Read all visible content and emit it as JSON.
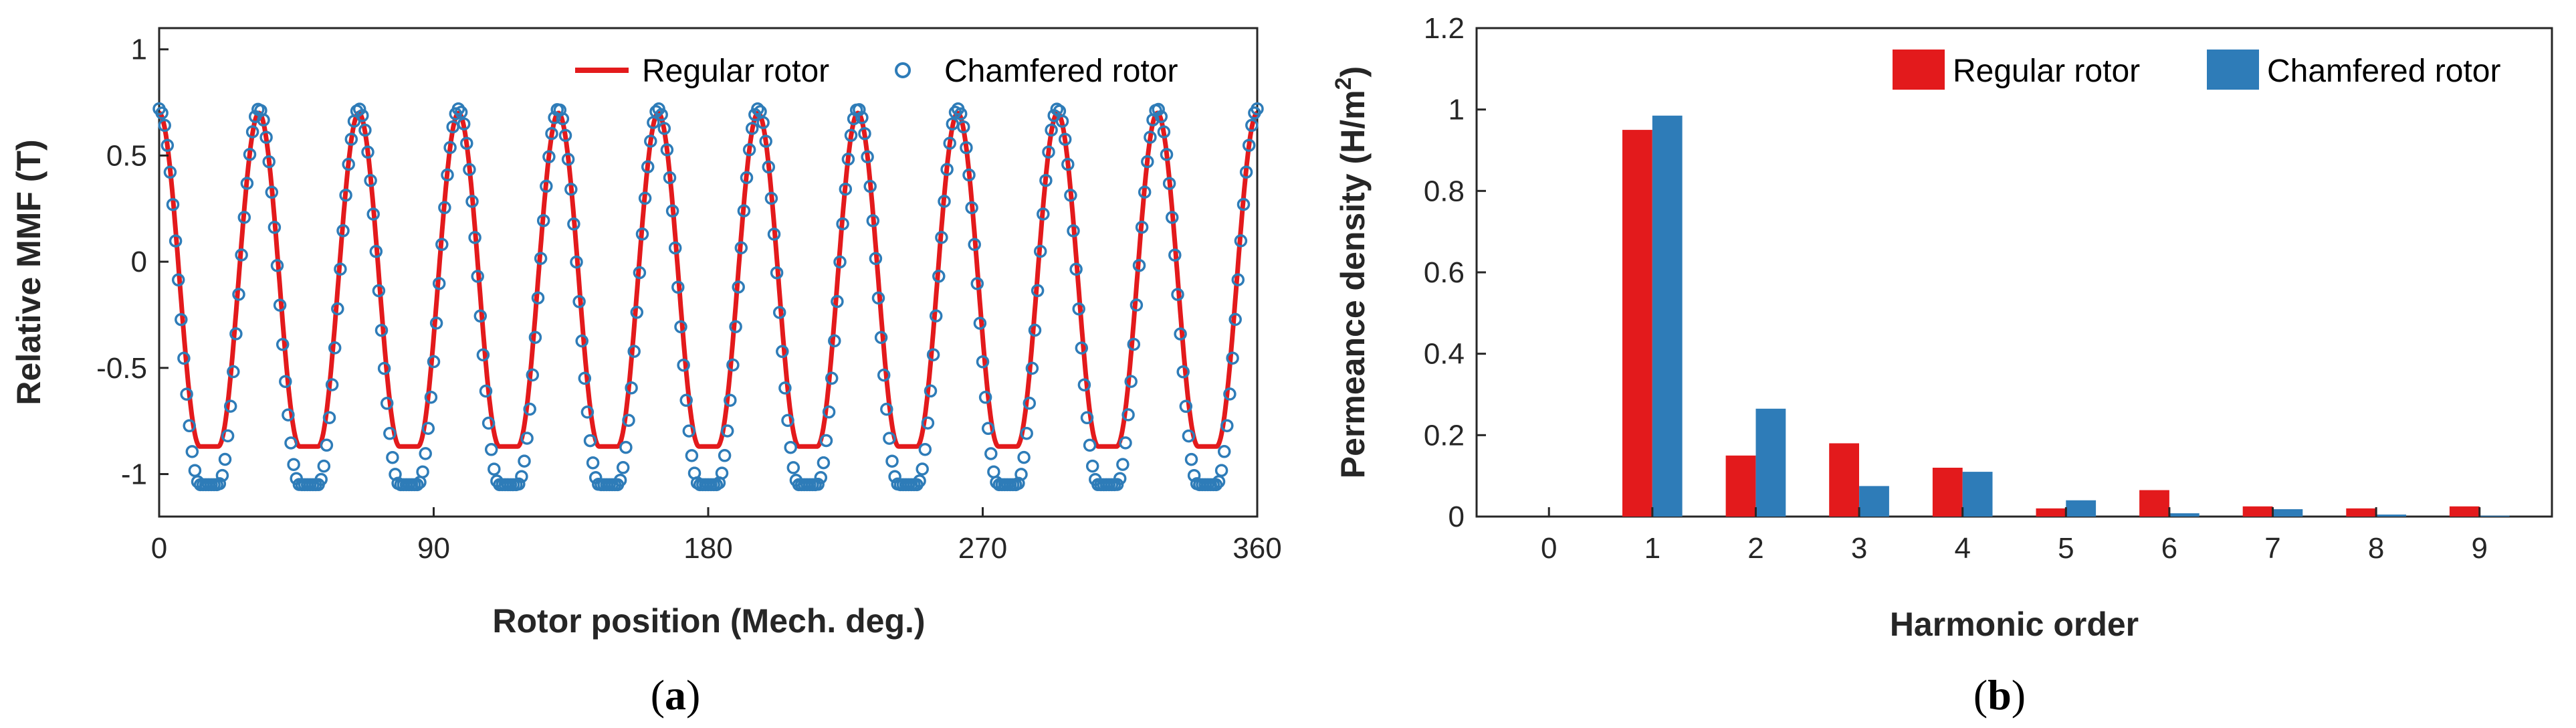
{
  "chart_data": [
    {
      "type": "line",
      "panel_label": {
        "open": "(",
        "letter": "a",
        "close": ")"
      },
      "xlabel": "Rotor position (Mech. deg.)",
      "ylabel": "Relative MMF (T)",
      "xlim": [
        0,
        360
      ],
      "ylim": [
        -1.2,
        1.1
      ],
      "xticks": [
        "0",
        "90",
        "180",
        "270",
        "360"
      ],
      "xtick_values": [
        0,
        90,
        180,
        270,
        360
      ],
      "yticks": [
        "-1",
        "-0.5",
        "0",
        "0.5",
        "1"
      ],
      "ytick_values": [
        -1,
        -0.5,
        0,
        0.5,
        1
      ],
      "grid": false,
      "legend_position": "top-right",
      "period_deg": 32.727,
      "marker_step_deg": 0.9,
      "series": [
        {
          "name": "Regular rotor",
          "style": "line",
          "color": "#e31a1c",
          "peak": 0.7,
          "trough": -0.87,
          "flat_bottom_width_deg": 6
        },
        {
          "name": "Chamfered rotor",
          "style": "markers",
          "color": "#2e7cb8",
          "peak": 0.72,
          "trough": -1.05,
          "flat_bottom_width_deg": 6
        }
      ]
    },
    {
      "type": "bar",
      "panel_label": {
        "open": "(",
        "letter": "b",
        "close": ")"
      },
      "xlabel": "Harmonic order",
      "ylabel_main": "Permeance density (H/m",
      "ylabel_sup": "2",
      "ylabel_close": ")",
      "categories": [
        "0",
        "1",
        "2",
        "3",
        "4",
        "5",
        "6",
        "7",
        "8",
        "9"
      ],
      "ylim": [
        0,
        1.2
      ],
      "yticks": [
        "0",
        "0.2",
        "0.4",
        "0.6",
        "0.8",
        "1",
        "1.2"
      ],
      "ytick_values": [
        0,
        0.2,
        0.4,
        0.6,
        0.8,
        1,
        1.2
      ],
      "grid": false,
      "legend_position": "top-right",
      "series": [
        {
          "name": "Regular rotor",
          "color": "#e31a1c",
          "values": [
            0,
            0.95,
            0.15,
            0.18,
            0.12,
            0.02,
            0.065,
            0.025,
            0.02,
            0.025
          ]
        },
        {
          "name": "Chamfered rotor",
          "color": "#2e7cb8",
          "values": [
            0,
            0.985,
            0.265,
            0.075,
            0.11,
            0.04,
            0.008,
            0.018,
            0.005,
            0.002
          ]
        }
      ]
    }
  ]
}
